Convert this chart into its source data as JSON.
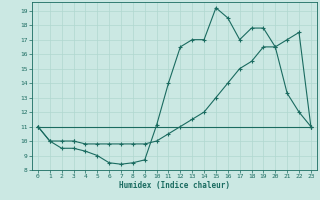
{
  "xlabel": "Humidex (Indice chaleur)",
  "bg_color": "#cbe8e3",
  "grid_color": "#b0d8d0",
  "line_color": "#1a6b60",
  "xlim": [
    -0.5,
    23.5
  ],
  "ylim": [
    8,
    19.6
  ],
  "xticks": [
    0,
    1,
    2,
    3,
    4,
    5,
    6,
    7,
    8,
    9,
    10,
    11,
    12,
    13,
    14,
    15,
    16,
    17,
    18,
    19,
    20,
    21,
    22,
    23
  ],
  "yticks": [
    8,
    9,
    10,
    11,
    12,
    13,
    14,
    15,
    16,
    17,
    18,
    19
  ],
  "line1_x": [
    0,
    1,
    2,
    3,
    4,
    5,
    6,
    7,
    8,
    9,
    10,
    11,
    12,
    13,
    14,
    15,
    16,
    17,
    18,
    19,
    20,
    21,
    22,
    23
  ],
  "line1_y": [
    11,
    10,
    9.5,
    9.5,
    9.3,
    9.0,
    8.5,
    8.4,
    8.5,
    8.7,
    11.1,
    14.0,
    16.5,
    17.0,
    17.0,
    19.2,
    18.5,
    17.0,
    17.8,
    17.8,
    16.5,
    13.3,
    12.0,
    11.0
  ],
  "line2_x": [
    0,
    1,
    2,
    3,
    3,
    4,
    5,
    6,
    7,
    8,
    9,
    10,
    11,
    12,
    13,
    14,
    15,
    16,
    17,
    18,
    19,
    20,
    21,
    22,
    23
  ],
  "line2_y": [
    11,
    10,
    10.0,
    10.0,
    10.0,
    9.8,
    9.8,
    9.8,
    9.8,
    9.8,
    9.8,
    10.0,
    10.5,
    11.0,
    11.5,
    12.0,
    13.0,
    14.0,
    15.0,
    15.5,
    16.5,
    16.5,
    17.0,
    17.5,
    11.0
  ],
  "line3_x": [
    0,
    23
  ],
  "line3_y": [
    11,
    11
  ]
}
